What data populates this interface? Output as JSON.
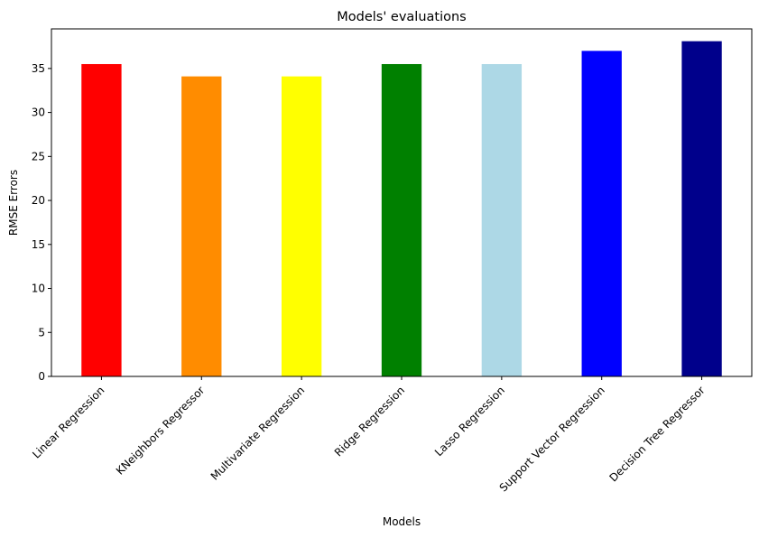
{
  "chart_data": {
    "type": "bar",
    "title": "Models' evaluations",
    "xlabel": "Models",
    "ylabel": "RMSE Errors",
    "categories": [
      "Linear Regression",
      "KNeighbors Regressor",
      "Multivariate Regression",
      "Ridge Regression",
      "Lasso Regression",
      "Support Vector Regression",
      "Decision Tree Regressor"
    ],
    "values": [
      35.5,
      34.1,
      34.1,
      35.5,
      35.5,
      37.0,
      38.1
    ],
    "colors": [
      "#ff0000",
      "#ff8c00",
      "#ffff00",
      "#008000",
      "#add8e6",
      "#0000ff",
      "#00008b"
    ],
    "yticks": [
      0,
      5,
      10,
      15,
      20,
      25,
      30,
      35
    ],
    "ylim": [
      0,
      39.5
    ],
    "grid": false,
    "legend": "none"
  }
}
